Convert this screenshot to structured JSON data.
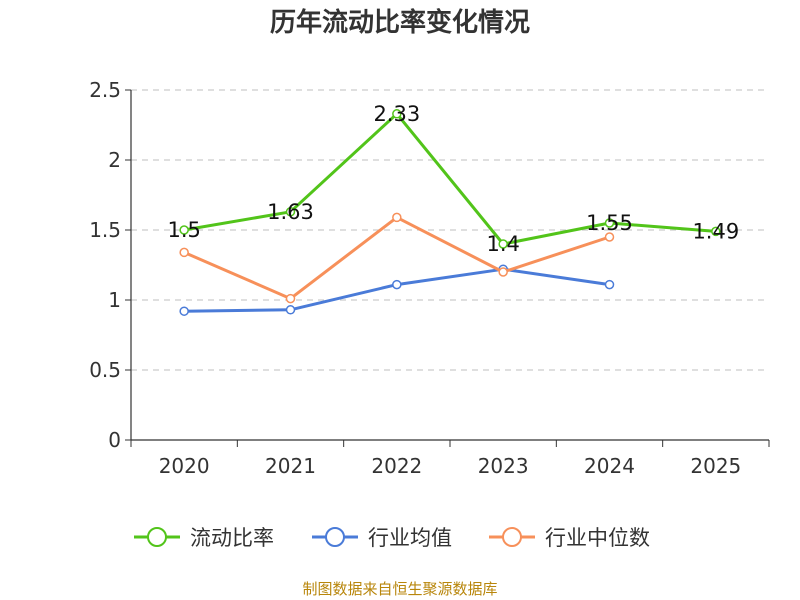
{
  "chart_data": {
    "type": "line",
    "title": "历年流动比率变化情况",
    "categories": [
      "2020",
      "2021",
      "2022",
      "2023",
      "2024",
      "2025"
    ],
    "ylim": [
      0,
      2.5
    ],
    "yticks": [
      "0",
      "0.5",
      "1",
      "1.5",
      "2",
      "2.5"
    ],
    "grid": true,
    "legend_position": "bottom",
    "series": [
      {
        "name": "流动比率",
        "color": "#52c41a",
        "values": [
          1.5,
          1.63,
          2.33,
          1.4,
          1.55,
          1.49
        ],
        "labels": [
          "1.5",
          "1.63",
          "2.33",
          "1.4",
          "1.55",
          "1.49"
        ]
      },
      {
        "name": "行业均值",
        "color": "#4a7bd8",
        "values": [
          0.92,
          0.93,
          1.11,
          1.22,
          1.11,
          null
        ]
      },
      {
        "name": "行业中位数",
        "color": "#f7905a",
        "values": [
          1.34,
          1.01,
          1.59,
          1.2,
          1.45,
          null
        ]
      }
    ]
  },
  "footer": {
    "source": "制图数据来自恒生聚源数据库"
  }
}
